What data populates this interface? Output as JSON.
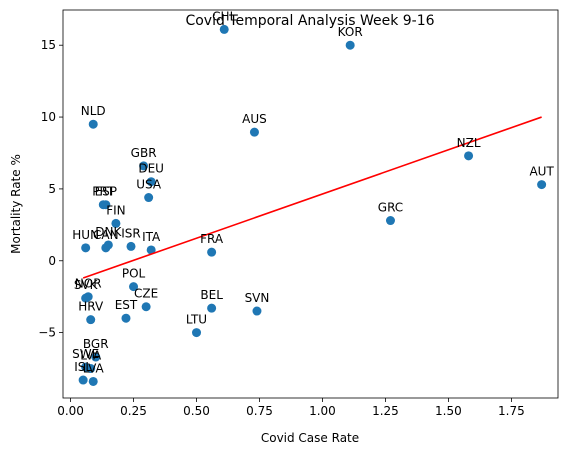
{
  "chart_data": {
    "type": "scatter",
    "title": "Covid Temporal Analysis Week 9-16",
    "xlabel": "Covid Case Rate",
    "ylabel": "Mortality Rate %",
    "xlim": [
      -0.03,
      1.935
    ],
    "ylim": [
      -9.55,
      17.45
    ],
    "xticks": [
      0.0,
      0.25,
      0.5,
      0.75,
      1.0,
      1.25,
      1.5,
      1.75
    ],
    "xtick_labels": [
      "0.00",
      "0.25",
      "0.50",
      "0.75",
      "1.00",
      "1.25",
      "1.50",
      "1.75"
    ],
    "yticks": [
      -5,
      0,
      5,
      10,
      15
    ],
    "ytick_labels": [
      "−5",
      "0",
      "5",
      "10",
      "15"
    ],
    "grid": false,
    "point_color": "#1f77b4",
    "trend_color": "#ff0000",
    "points": [
      {
        "label": "CHL",
        "x": 0.61,
        "y": 16.1
      },
      {
        "label": "KOR",
        "x": 1.11,
        "y": 15.0
      },
      {
        "label": "NLD",
        "x": 0.09,
        "y": 9.5
      },
      {
        "label": "AUS",
        "x": 0.73,
        "y": 8.95
      },
      {
        "label": "NZL",
        "x": 1.58,
        "y": 7.3
      },
      {
        "label": "GBR",
        "x": 0.29,
        "y": 6.6
      },
      {
        "label": "DEU",
        "x": 0.32,
        "y": 5.5
      },
      {
        "label": "AUT",
        "x": 1.87,
        "y": 5.3
      },
      {
        "label": "USA",
        "x": 0.31,
        "y": 4.4
      },
      {
        "label": "ESP",
        "x": 0.14,
        "y": 3.9
      },
      {
        "label": "PRT",
        "x": 0.13,
        "y": 3.9
      },
      {
        "label": "GRC",
        "x": 1.27,
        "y": 2.8
      },
      {
        "label": "FIN",
        "x": 0.18,
        "y": 2.6
      },
      {
        "label": "CAN",
        "x": 0.14,
        "y": 0.9
      },
      {
        "label": "DNK",
        "x": 0.15,
        "y": 1.1
      },
      {
        "label": "ISR",
        "x": 0.24,
        "y": 1.0
      },
      {
        "label": "ITA",
        "x": 0.32,
        "y": 0.75
      },
      {
        "label": "HUN",
        "x": 0.06,
        "y": 0.9
      },
      {
        "label": "FRA",
        "x": 0.56,
        "y": 0.6
      },
      {
        "label": "POL",
        "x": 0.25,
        "y": -1.8
      },
      {
        "label": "NOR",
        "x": 0.07,
        "y": -2.5
      },
      {
        "label": "SVK",
        "x": 0.06,
        "y": -2.6
      },
      {
        "label": "CZE",
        "x": 0.3,
        "y": -3.2
      },
      {
        "label": "BEL",
        "x": 0.56,
        "y": -3.3
      },
      {
        "label": "SVN",
        "x": 0.74,
        "y": -3.5
      },
      {
        "label": "HRV",
        "x": 0.08,
        "y": -4.1
      },
      {
        "label": "EST",
        "x": 0.22,
        "y": -4.0
      },
      {
        "label": "LTU",
        "x": 0.5,
        "y": -5.0
      },
      {
        "label": "BGR",
        "x": 0.1,
        "y": -6.7
      },
      {
        "label": "SWE",
        "x": 0.06,
        "y": -7.4
      },
      {
        "label": "LVA",
        "x": 0.08,
        "y": -7.5
      },
      {
        "label": "ISL",
        "x": 0.05,
        "y": -8.3
      },
      {
        "label": "LVA",
        "x": 0.09,
        "y": -8.4
      }
    ],
    "trendline": {
      "x": [
        0.05,
        1.87
      ],
      "y": [
        -1.2,
        10.0
      ]
    }
  }
}
